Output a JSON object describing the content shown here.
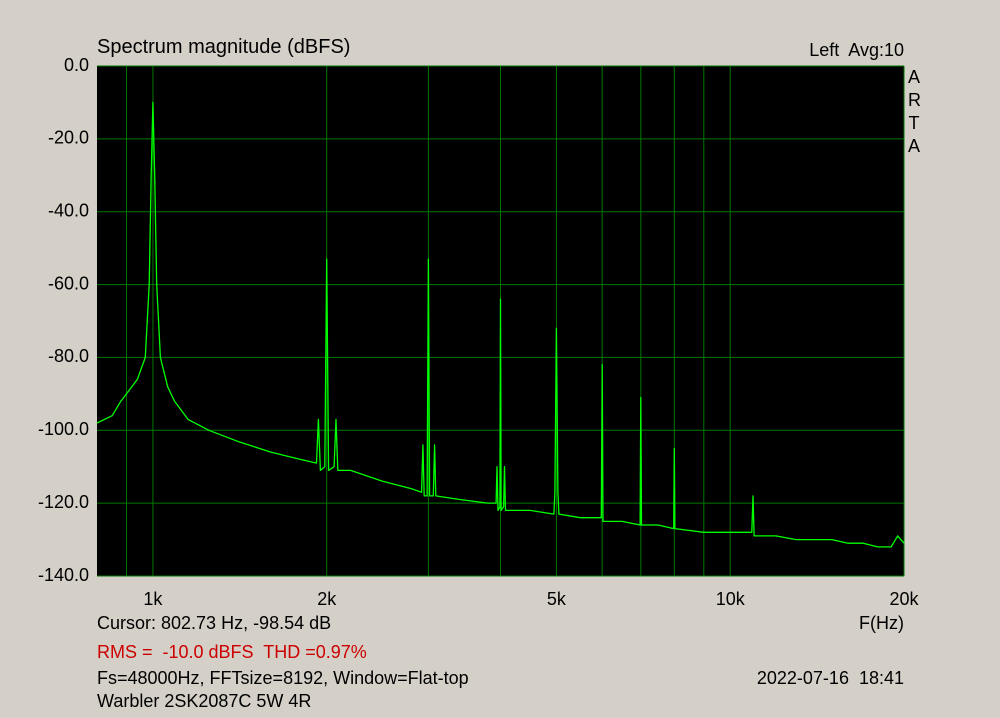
{
  "chart_data": {
    "type": "line",
    "title": "Spectrum magnitude (dBFS)",
    "channel_label": "Left  Avg:10",
    "watermark": "ARTA",
    "xlabel": "F(Hz)",
    "cursor": "Cursor: 802.73 Hz, -98.54 dB",
    "rms_thd": "RMS =  -10.0 dBFS  THD =0.97%",
    "settings": "Fs=48000Hz, FFTsize=8192, Window=Flat-top",
    "timestamp": "2022-07-16  18:41",
    "device": "Warbler 2SK2087C 5W 4R",
    "xscale": "log",
    "xlim": [
      800,
      20000
    ],
    "xticks": [
      {
        "value": 1000,
        "label": "1k"
      },
      {
        "value": 2000,
        "label": "2k"
      },
      {
        "value": 5000,
        "label": "5k"
      },
      {
        "value": 10000,
        "label": "10k"
      },
      {
        "value": 20000,
        "label": "20k"
      }
    ],
    "xminor": [
      900,
      3000,
      4000,
      6000,
      7000,
      8000,
      9000
    ],
    "ylim": [
      -140,
      0
    ],
    "yticks": [
      {
        "value": 0,
        "label": "0.0"
      },
      {
        "value": -20,
        "label": "-20.0"
      },
      {
        "value": -40,
        "label": "-40.0"
      },
      {
        "value": -60,
        "label": "-60.0"
      },
      {
        "value": -80,
        "label": "-80.0"
      },
      {
        "value": -100,
        "label": "-100.0"
      },
      {
        "value": -120,
        "label": "-120.0"
      },
      {
        "value": -140,
        "label": "-140.0"
      }
    ],
    "grid": true,
    "background": "#000000",
    "grid_color": "#007800",
    "rms_color": "#cc0000",
    "series": [
      {
        "color": "#00ff00",
        "x": [
          800,
          850,
          880,
          900,
          940,
          970,
          985,
          993,
          1000,
          1007,
          1015,
          1030,
          1060,
          1090,
          1150,
          1250,
          1400,
          1600,
          1800,
          1920,
          1935,
          1950,
          1985,
          2000,
          2015,
          2060,
          2075,
          2090,
          2200,
          2500,
          2800,
          2920,
          2935,
          2950,
          2985,
          3000,
          3015,
          3060,
          3075,
          3090,
          3400,
          3800,
          3930,
          3945,
          3960,
          3990,
          4000,
          4010,
          4050,
          4065,
          4080,
          4500,
          4950,
          4970,
          5000,
          5030,
          5050,
          5500,
          5980,
          6000,
          6020,
          6500,
          6980,
          7000,
          7020,
          7500,
          7980,
          8000,
          8020,
          9000,
          10000,
          10900,
          10950,
          11000,
          12000,
          13000,
          14000,
          15000,
          16000,
          17000,
          18000,
          19000,
          19500,
          20000
        ],
        "values": [
          -98,
          -96,
          -92,
          -90,
          -86,
          -80,
          -60,
          -30,
          -10,
          -30,
          -60,
          -80,
          -88,
          -92,
          -97,
          -100,
          -103,
          -106,
          -108,
          -109,
          -97,
          -111,
          -110,
          -53,
          -111,
          -110,
          -97,
          -111,
          -111,
          -114,
          -116,
          -117,
          -104,
          -118,
          -118,
          -53,
          -118,
          -118,
          -104,
          -118,
          -119,
          -120,
          -120,
          -110,
          -122,
          -121,
          -64,
          -122,
          -121,
          -110,
          -122,
          -122,
          -123,
          -117,
          -72,
          -117,
          -123,
          -124,
          -124,
          -82,
          -125,
          -125,
          -126,
          -91,
          -126,
          -126,
          -127,
          -105,
          -127,
          -128,
          -128,
          -128,
          -118,
          -129,
          -129,
          -130,
          -130,
          -130,
          -131,
          -131,
          -132,
          -132,
          -129,
          -131
        ]
      }
    ]
  }
}
